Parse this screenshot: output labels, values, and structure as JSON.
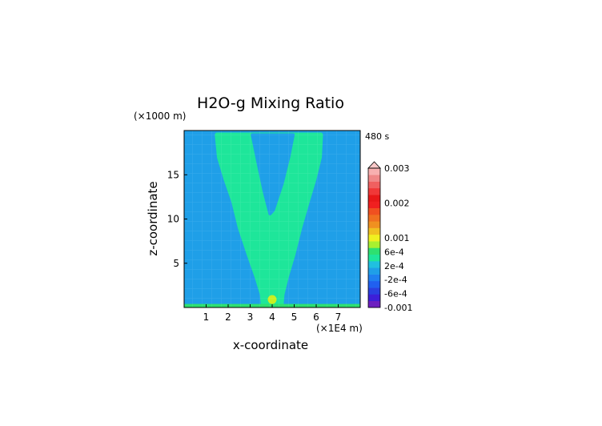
{
  "chart_data": {
    "type": "heatmap",
    "title": "H2O-g Mixing Ratio",
    "xlabel": "x-coordinate",
    "ylabel": "z-coordinate",
    "x_unit": "(×1E4 m)",
    "y_unit": "(×1000 m)",
    "time_label": "480 s",
    "xlim": [
      0,
      8
    ],
    "ylim": [
      0,
      20
    ],
    "x_ticks": [
      "1",
      "2",
      "3",
      "4",
      "5",
      "6",
      "7"
    ],
    "y_ticks": [
      "5",
      "10",
      "15"
    ],
    "background_value_color": "#1f9fe8",
    "plume_value_color": "#1ee69a",
    "surface_value_color": "#2ee070",
    "source_value_color": "#c8f020",
    "source_center": [
      4.0,
      0.9
    ],
    "plume_left_edge": [
      [
        1.5,
        19.5
      ],
      [
        1.6,
        17.0
      ],
      [
        1.9,
        14.5
      ],
      [
        2.25,
        12.0
      ],
      [
        2.55,
        9.0
      ],
      [
        2.95,
        6.0
      ],
      [
        3.3,
        3.5
      ],
      [
        3.55,
        1.5
      ],
      [
        3.6,
        0.0
      ]
    ],
    "plume_right_edge": [
      [
        6.2,
        19.5
      ],
      [
        6.15,
        17.0
      ],
      [
        5.9,
        14.5
      ],
      [
        5.6,
        12.0
      ],
      [
        5.25,
        9.0
      ],
      [
        4.95,
        6.0
      ],
      [
        4.65,
        3.5
      ],
      [
        4.45,
        1.5
      ],
      [
        4.4,
        0.0
      ]
    ],
    "plume_notch": [
      [
        3.1,
        19.5
      ],
      [
        3.35,
        16.5
      ],
      [
        3.65,
        13.0
      ],
      [
        3.9,
        10.6
      ],
      [
        4.05,
        11.0
      ],
      [
        4.45,
        14.0
      ],
      [
        4.75,
        17.0
      ],
      [
        4.95,
        19.5
      ]
    ],
    "colorbar": {
      "labels": [
        {
          "text": "0.003",
          "value": 0.003
        },
        {
          "text": "0.002",
          "value": 0.002
        },
        {
          "text": "0.001",
          "value": 0.001
        },
        {
          "text": "6e-4",
          "value": 0.0006
        },
        {
          "text": "2e-4",
          "value": 0.0002
        },
        {
          "text": "-2e-4",
          "value": -0.0002
        },
        {
          "text": "-6e-4",
          "value": -0.0006
        },
        {
          "text": "-0.001",
          "value": -0.001
        }
      ],
      "colors": [
        "#6d1fc0",
        "#3d1fd8",
        "#2a40e0",
        "#2060f0",
        "#1f80f0",
        "#1f9fe8",
        "#20c0e0",
        "#1ee69a",
        "#2ee070",
        "#a8f030",
        "#f0f020",
        "#f0c020",
        "#f09020",
        "#f07020",
        "#f05020",
        "#f02020",
        "#e81818",
        "#f03838",
        "#f06060",
        "#f08888",
        "#f8b0b0"
      ],
      "top_triangle_color": "#f8c8c8"
    }
  }
}
